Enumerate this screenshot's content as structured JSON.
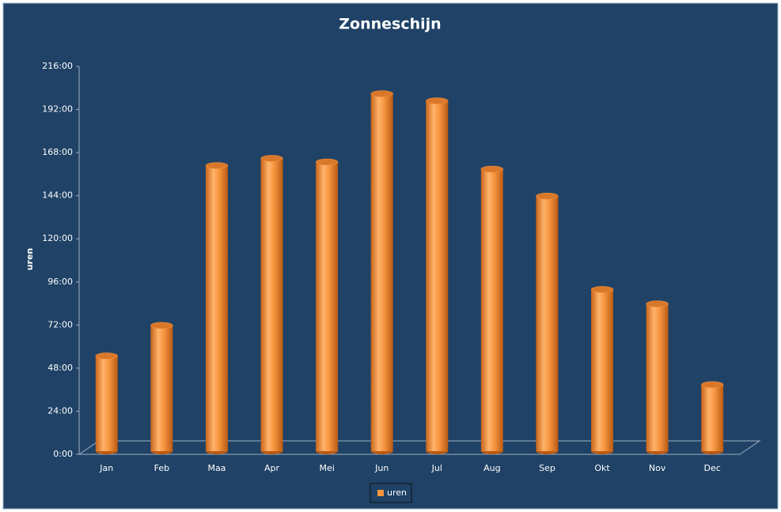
{
  "chart_data": {
    "type": "bar",
    "title": "Zonneschijn",
    "y_label": "uren",
    "categories": [
      "Jan",
      "Feb",
      "Maa",
      "Apr",
      "Mei",
      "Jun",
      "Jul",
      "Aug",
      "Sep",
      "Okt",
      "Nov",
      "Dec"
    ],
    "series": [
      {
        "name": "uren",
        "color": "#f7953f",
        "values": [
          53,
          70,
          159,
          163,
          161,
          199,
          195,
          157,
          142,
          90,
          82,
          37
        ]
      }
    ],
    "ylim": [
      0,
      216
    ],
    "yticks": [
      {
        "value": 0,
        "label": "0:00"
      },
      {
        "value": 24,
        "label": "24:00"
      },
      {
        "value": 48,
        "label": "48:00"
      },
      {
        "value": 72,
        "label": "72:00"
      },
      {
        "value": 96,
        "label": "96:00"
      },
      {
        "value": 120,
        "label": "120:00"
      },
      {
        "value": 144,
        "label": "144:00"
      },
      {
        "value": 168,
        "label": "168:00"
      },
      {
        "value": 192,
        "label": "192:00"
      },
      {
        "value": 216,
        "label": "216:00"
      }
    ],
    "legend": "bottom"
  }
}
